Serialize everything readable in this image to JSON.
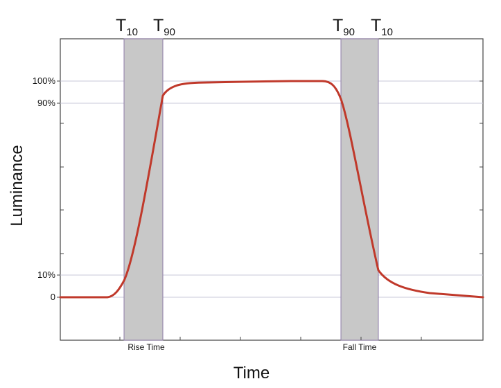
{
  "diagram": {
    "x_axis_title": "Time",
    "y_axis_title": "Luminance",
    "y_ticks": {
      "l100": "100%",
      "l90": "90%",
      "l10": "10%",
      "l0": "0"
    },
    "markers": {
      "left_t10": {
        "main": "T",
        "sub": "10"
      },
      "left_t90": {
        "main": "T",
        "sub": "90"
      },
      "right_t90": {
        "main": "T",
        "sub": "90"
      },
      "right_t10": {
        "main": "T",
        "sub": "10"
      }
    },
    "bands": {
      "rise": "Rise Time",
      "fall": "Fall Time"
    },
    "colors": {
      "curve": "#c0392b",
      "band_fill": "#c8c8c8",
      "band_edge": "#8e7ba8",
      "grid": "#c8c8d8",
      "axis": "#444444"
    }
  }
}
